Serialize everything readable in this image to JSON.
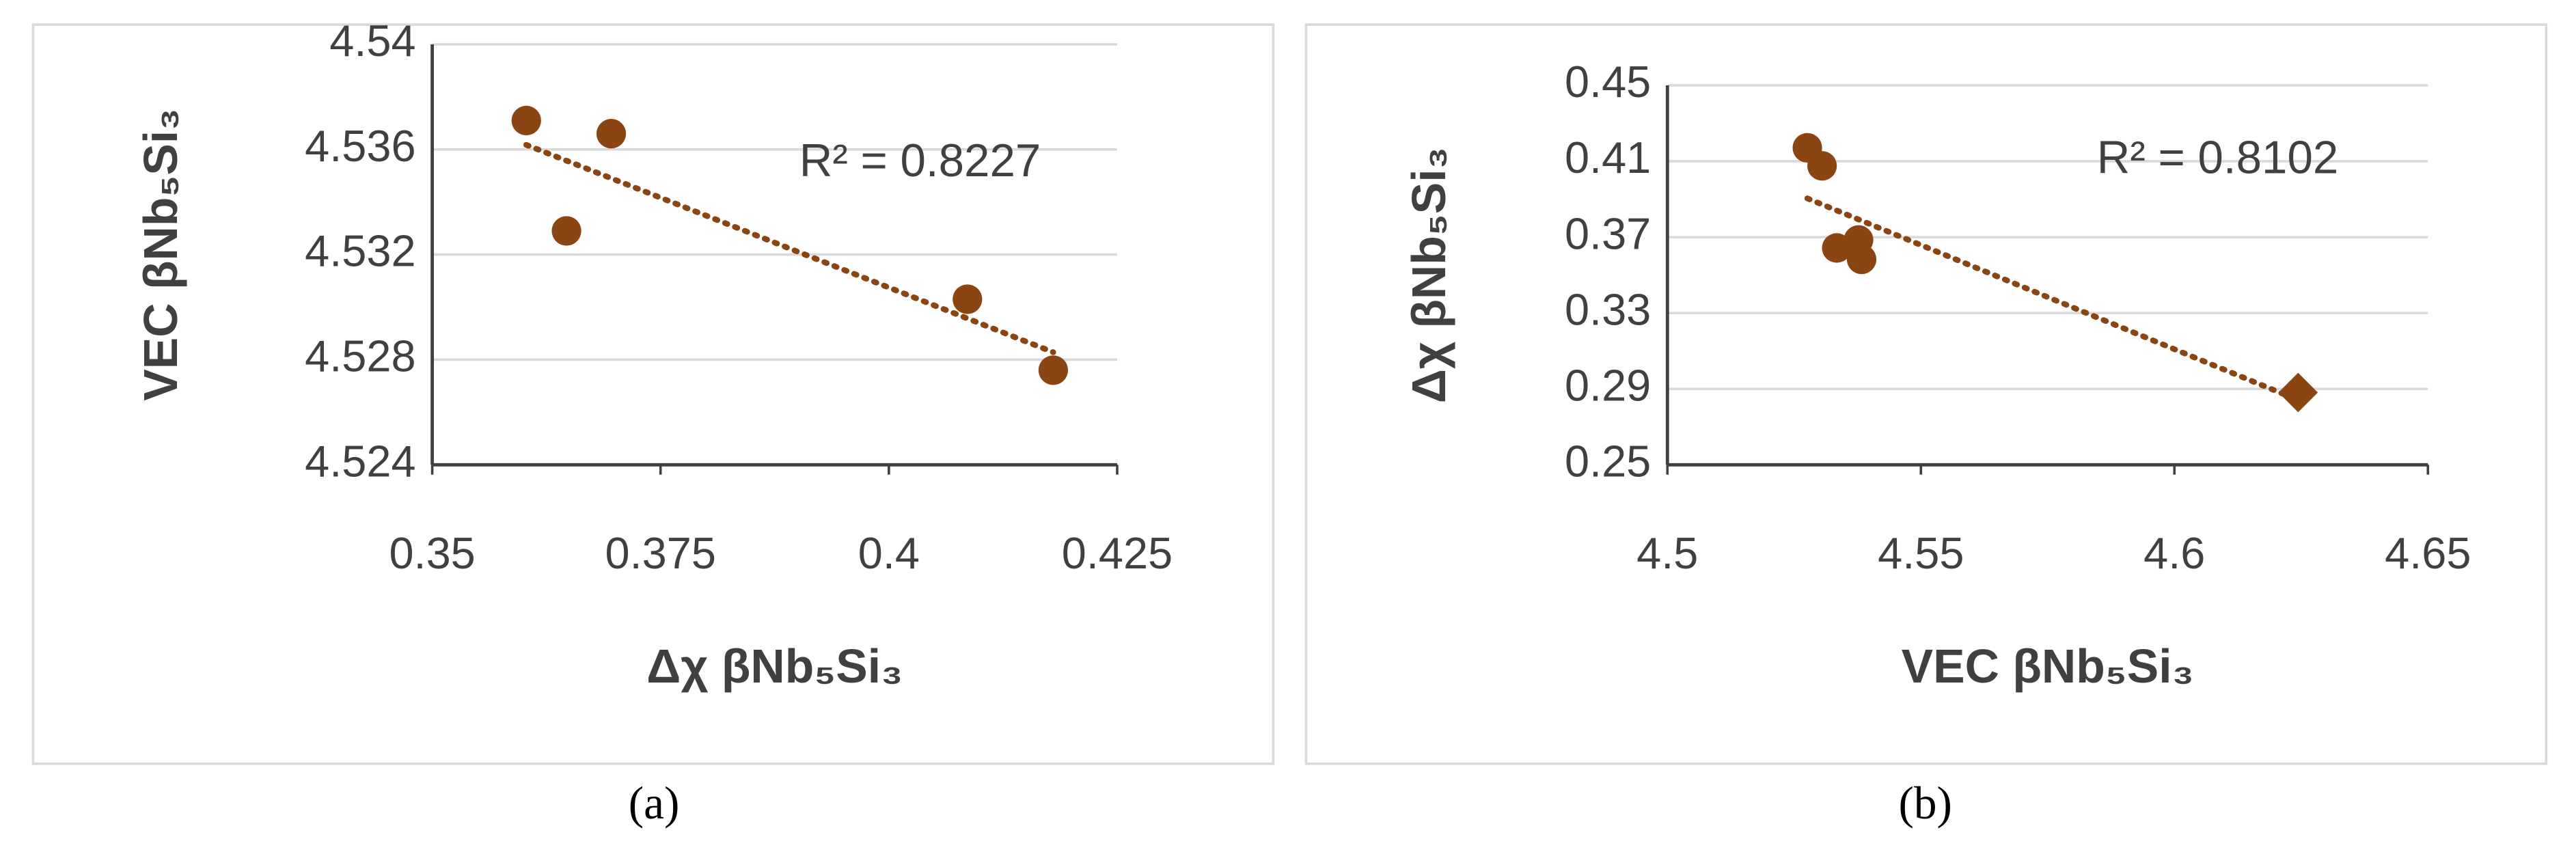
{
  "chart_data": [
    {
      "type": "scatter",
      "caption": "(a)",
      "xlabel": "Δχ βNb₅Si₃",
      "ylabel": "VEC βNb₅Si₃",
      "annotation": "R² = 0.8227",
      "xlim": [
        0.35,
        0.425
      ],
      "xticks": [
        0.35,
        0.375,
        0.4,
        0.425
      ],
      "ylim": [
        4.524,
        4.54
      ],
      "yticks": [
        4.524,
        4.528,
        4.532,
        4.536,
        4.54
      ],
      "grid": true,
      "trendline": true,
      "series": [
        {
          "color": "#8b4513",
          "marker": "circle",
          "x": [
            0.3603,
            0.3696,
            0.3647,
            0.4086,
            0.418
          ],
          "values": [
            4.5371,
            4.5366,
            4.5329,
            4.5303,
            4.5276
          ]
        }
      ]
    },
    {
      "type": "scatter",
      "caption": "(b)",
      "xlabel": "VEC βNb₅Si₃",
      "ylabel": "Δχ βNb₅Si₃",
      "annotation": "R² = 0.8102",
      "xlim": [
        4.5,
        4.65
      ],
      "xticks": [
        4.5,
        4.55,
        4.6,
        4.65
      ],
      "ylim": [
        0.25,
        0.45
      ],
      "yticks": [
        0.25,
        0.29,
        0.33,
        0.37,
        0.41,
        0.45
      ],
      "grid": true,
      "trendline": true,
      "series": [
        {
          "color": "#8b4513",
          "marker": "circle",
          "x": [
            4.5276,
            4.5305,
            4.5334,
            4.5377,
            4.5383
          ],
          "values": [
            0.4171,
            0.4076,
            0.3643,
            0.3685,
            0.3583
          ]
        },
        {
          "color": "#8b4513",
          "marker": "diamond",
          "x": [
            4.6244
          ],
          "values": [
            0.2881
          ]
        }
      ]
    }
  ]
}
